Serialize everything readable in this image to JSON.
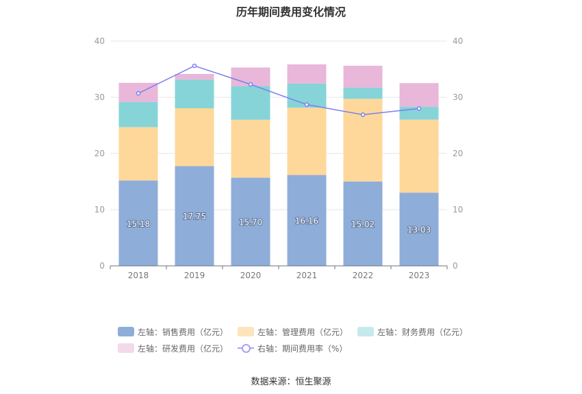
{
  "title": "历年期间费用变化情况",
  "source": "数据来源：恒生聚源",
  "colors": {
    "sales": "#8fadd9",
    "admin": "#fed89a",
    "finance": "#86d4d8",
    "rd": "#e8b7d9",
    "rate": "#7b7ef0"
  },
  "legend": [
    {
      "label": "左轴：销售费用（亿元）",
      "color": "#8fadd9",
      "kind": "bar"
    },
    {
      "label": "左轴：管理费用（亿元）",
      "color": "#fee4bd",
      "kind": "bar"
    },
    {
      "label": "左轴：财务费用（亿元）",
      "color": "#c4eaec",
      "kind": "bar"
    },
    {
      "label": "左轴：研发费用（亿元）",
      "color": "#f3d9ec",
      "kind": "bar"
    },
    {
      "label": "右轴：期间费用率（%）",
      "color": "#a6a3f5",
      "kind": "line"
    }
  ],
  "chart_data": {
    "type": "bar",
    "stacked": true,
    "categories": [
      "2018",
      "2019",
      "2020",
      "2021",
      "2022",
      "2023"
    ],
    "series": [
      {
        "name": "左轴：销售费用（亿元）",
        "axis": "left",
        "values": [
          15.18,
          17.75,
          15.7,
          16.16,
          15.02,
          13.03
        ],
        "labels": [
          "15.18",
          "17.75",
          "15.70",
          "16.16",
          "15.02",
          "13.03"
        ]
      },
      {
        "name": "左轴：管理费用（亿元）",
        "axis": "left",
        "values": [
          9.5,
          10.3,
          10.3,
          12.0,
          14.7,
          13.0
        ]
      },
      {
        "name": "左轴：财务费用（亿元）",
        "axis": "left",
        "values": [
          4.5,
          5.1,
          6.0,
          4.3,
          2.0,
          2.3
        ]
      },
      {
        "name": "左轴：研发费用（亿元）",
        "axis": "left",
        "values": [
          3.4,
          1.0,
          3.3,
          3.4,
          3.9,
          4.2
        ]
      },
      {
        "name": "右轴：期间费用率（%）",
        "axis": "right",
        "type": "line",
        "values": [
          30.7,
          35.6,
          32.3,
          28.7,
          26.9,
          28.0
        ]
      }
    ],
    "ylim_left": [
      0,
      40
    ],
    "ylim_right": [
      0,
      40
    ],
    "yticks": [
      "0",
      "10",
      "20",
      "30",
      "40"
    ],
    "grid": true,
    "legend_position": "bottom"
  }
}
